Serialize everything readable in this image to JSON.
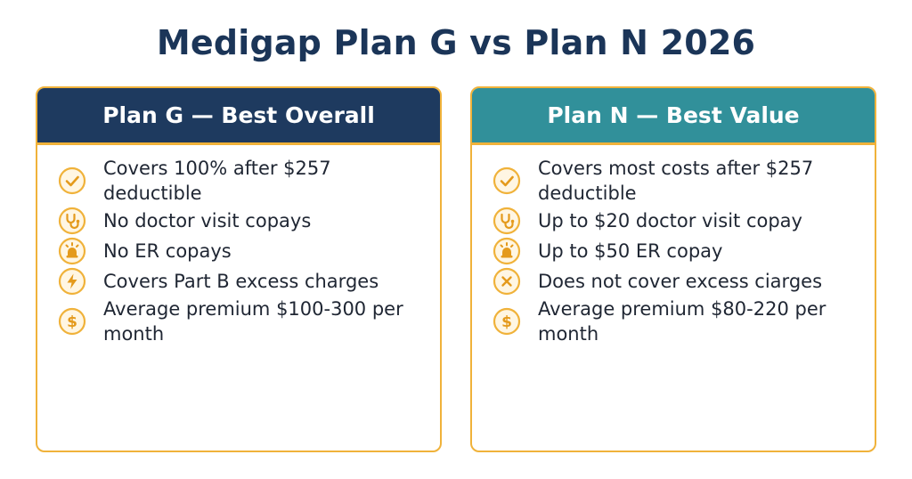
{
  "title": "Medigap Plan G vs Plan N 2026",
  "plans": [
    {
      "key": "g",
      "header": "Plan G — Best Overall",
      "items": [
        {
          "icon": "check-circle-icon",
          "text": "Covers 100% after $257 deductible"
        },
        {
          "icon": "stethoscope-icon",
          "text": "No doctor visit copays"
        },
        {
          "icon": "emergency-light-icon",
          "text": "No ER copays"
        },
        {
          "icon": "lightning-bolt-icon",
          "text": "Covers Part B excess charges"
        },
        {
          "icon": "dollar-coin-icon",
          "text": "Average premium $100-300 per month"
        }
      ]
    },
    {
      "key": "n",
      "header": "Plan N — Best Value",
      "items": [
        {
          "icon": "check-circle-icon",
          "text": "Covers most costs after $257 deductible"
        },
        {
          "icon": "stethoscope-icon",
          "text": "Up to $20 doctor visit copay"
        },
        {
          "icon": "emergency-light-icon",
          "text": "Up to $50 ER copay"
        },
        {
          "icon": "x-circle-icon",
          "text": "Does not cover excess ciarges"
        },
        {
          "icon": "dollar-coin-icon",
          "text": "Average premium $80-220 per month"
        }
      ]
    }
  ],
  "colors": {
    "title": "#1b3558",
    "plan_g_header": "#1e3a5f",
    "plan_n_header": "#31909a",
    "accent": "#f0b23a"
  }
}
